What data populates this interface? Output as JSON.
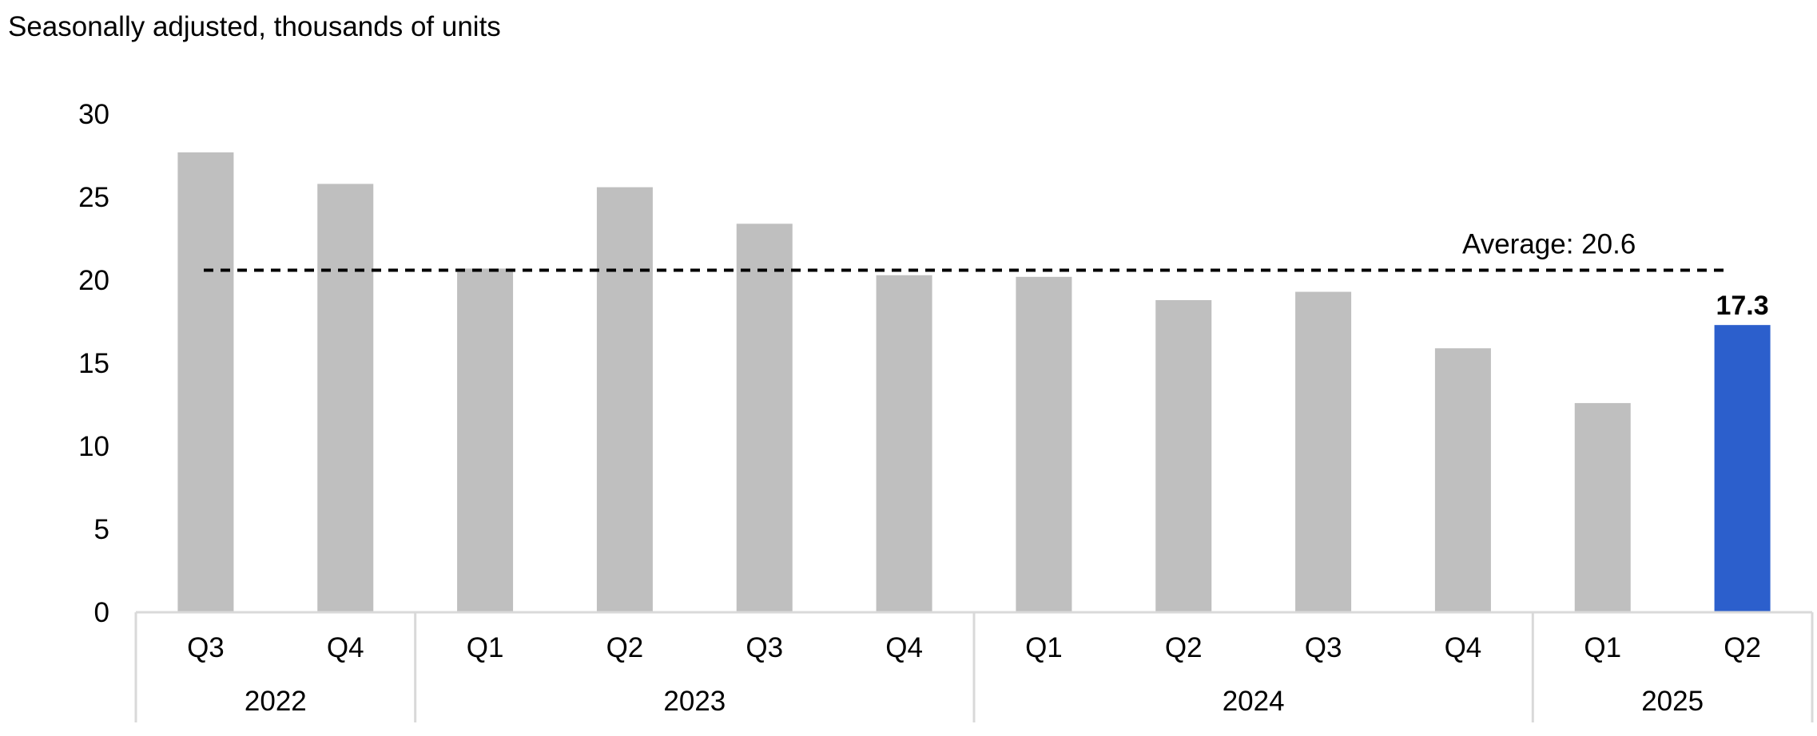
{
  "chart_data": {
    "type": "bar",
    "subtitle": "Seasonally adjusted, thousands of units",
    "categories": [
      "Q3",
      "Q4",
      "Q1",
      "Q2",
      "Q3",
      "Q4",
      "Q1",
      "Q2",
      "Q3",
      "Q4",
      "Q1",
      "Q2"
    ],
    "years": [
      {
        "label": "2022",
        "count": 2
      },
      {
        "label": "2023",
        "count": 4
      },
      {
        "label": "2024",
        "count": 4
      },
      {
        "label": "2025",
        "count": 2
      }
    ],
    "series": [
      {
        "values": [
          27.7,
          25.8,
          20.7,
          25.6,
          23.4,
          20.3,
          20.2,
          18.8,
          19.3,
          15.9,
          12.6,
          17.3
        ]
      }
    ],
    "highlight_index": 11,
    "highlight_label": "17.3",
    "average": {
      "value": 20.6,
      "label": "Average:",
      "value_label": "20.6"
    },
    "ylim": [
      0,
      30
    ],
    "yticks": [
      0,
      5,
      10,
      15,
      20,
      25,
      30
    ],
    "grid": false,
    "colors": {
      "bar": "#bfbfbf",
      "highlight": "#2c5fcc",
      "average_line": "#000000",
      "axis": "#d9d9d9"
    }
  }
}
